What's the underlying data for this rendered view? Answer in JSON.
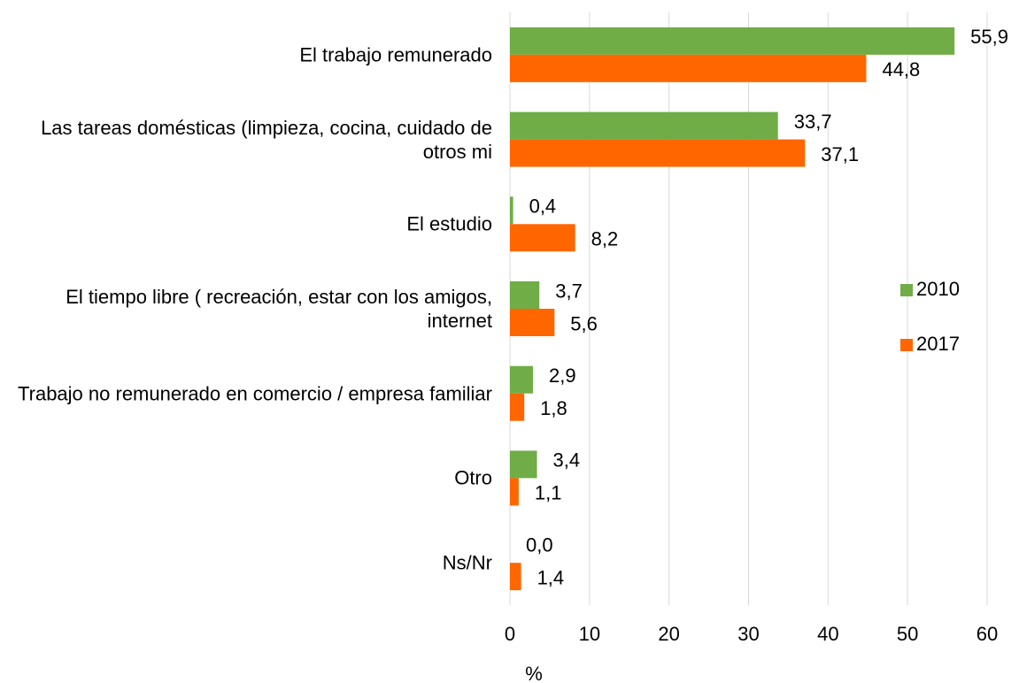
{
  "chart_data": {
    "type": "barh",
    "categories": [
      "El trabajo remunerado",
      "Las tareas domésticas (limpieza, cocina, cuidado de otros mi",
      "El estudio",
      "El tiempo libre ( recreación, estar con los amigos, internet",
      "Trabajo no remunerado en comercio / empresa familiar",
      "Otro",
      "Ns/Nr"
    ],
    "series": [
      {
        "name": "2010",
        "color": "#70ad47",
        "values": [
          55.9,
          33.7,
          0.4,
          3.7,
          2.9,
          3.4,
          0.0
        ],
        "value_labels": [
          "55,9",
          "33,7",
          "0,4",
          "3,7",
          "2,9",
          "3,4",
          "0,0"
        ]
      },
      {
        "name": "2017",
        "color": "#ff6600",
        "values": [
          44.8,
          37.1,
          8.2,
          5.6,
          1.8,
          1.1,
          1.4
        ],
        "value_labels": [
          "44,8",
          "37,1",
          "8,2",
          "5,6",
          "1,8",
          "1,1",
          "1,4"
        ]
      }
    ],
    "xlabel": "%",
    "xlim": [
      0,
      60
    ],
    "xticks": [
      0,
      10,
      20,
      30,
      40,
      50,
      60
    ],
    "grid": true,
    "legend": "right"
  }
}
